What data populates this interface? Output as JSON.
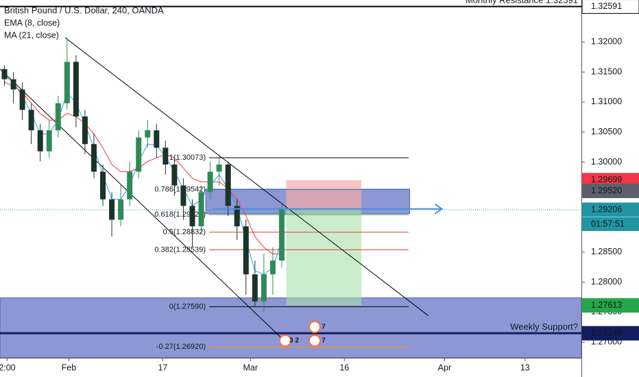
{
  "chart_data": {
    "type": "candlestick",
    "title": "British Pound / U.S. Dollar, 240, OANDA",
    "x": [
      0.5,
      1.5,
      2.5,
      3.5,
      4.5,
      5.5,
      6.5,
      7.5,
      8.5,
      9.5,
      10.5,
      11.5,
      12.5,
      13.5,
      14.5,
      15.5,
      16.5,
      17.5,
      18.5,
      19.5,
      20.5,
      21.5,
      22.5,
      23.5,
      24.5,
      25.5,
      26.5,
      27.5,
      28.5,
      29.5,
      30.5,
      31.5
    ],
    "open": [
      1.3155,
      1.3138,
      1.3121,
      1.3087,
      1.3053,
      1.3018,
      1.3053,
      1.3098,
      1.3167,
      1.3076,
      1.303,
      1.2984,
      1.2938,
      1.2904,
      1.2938,
      1.2984,
      1.3041,
      1.3053,
      1.3024,
      1.2996,
      1.2961,
      1.2927,
      1.2893,
      1.295,
      1.2984,
      1.2996,
      1.2927,
      1.2893,
      1.2813,
      1.2768,
      1.2813,
      1.2836
    ],
    "high": [
      1.3161,
      1.315,
      1.3133,
      1.3098,
      1.3064,
      1.307,
      1.311,
      1.3207,
      1.3178,
      1.3087,
      1.3047,
      1.2996,
      1.295,
      1.2961,
      1.3001,
      1.3053,
      1.307,
      1.3064,
      1.3036,
      1.3007,
      1.2973,
      1.2938,
      1.2961,
      1.3001,
      1.3013,
      1.3001,
      1.2938,
      1.2904,
      1.2836,
      1.2847,
      1.2858,
      1.2933
    ],
    "low": [
      1.3127,
      1.3098,
      1.307,
      1.303,
      1.3001,
      1.3007,
      1.3041,
      1.3087,
      1.3058,
      1.3013,
      1.2973,
      1.2927,
      1.2876,
      1.2893,
      1.2927,
      1.2973,
      1.3024,
      1.3007,
      1.2979,
      1.2944,
      1.2904,
      1.2858,
      1.2881,
      1.2938,
      1.2961,
      1.291,
      1.287,
      1.2779,
      1.2759,
      1.275,
      1.2779,
      1.2824
    ],
    "close": [
      1.3138,
      1.3121,
      1.3087,
      1.3053,
      1.3018,
      1.3053,
      1.3098,
      1.3167,
      1.3076,
      1.303,
      1.2984,
      1.2938,
      1.2904,
      1.2938,
      1.2984,
      1.3041,
      1.3053,
      1.3024,
      1.2996,
      1.2961,
      1.2927,
      1.2893,
      1.295,
      1.2984,
      1.2996,
      1.2927,
      1.2893,
      1.2813,
      1.2768,
      1.2813,
      1.2836,
      1.2921
    ],
    "up_color": "#2e8b57",
    "down_color": "#1c3328",
    "lines": [
      {
        "name": "EMA (8, close)",
        "color": "#2a9df4",
        "values": [
          1.3144,
          1.3133,
          1.311,
          1.3081,
          1.3047,
          1.3047,
          1.307,
          1.3116,
          1.3098,
          1.3064,
          1.3024,
          1.2979,
          1.2938,
          1.2938,
          1.2961,
          1.3001,
          1.303,
          1.3028,
          1.3009,
          1.2984,
          1.2956,
          1.2927,
          1.2938,
          1.2961,
          1.2979,
          1.2956,
          1.2927,
          1.287,
          1.2819,
          1.2813,
          1.2824,
          1.287
        ]
      },
      {
        "name": "MA (21, close)",
        "color": "#f23645",
        "values": [
          1.3133,
          1.3127,
          1.3116,
          1.3098,
          1.3081,
          1.307,
          1.307,
          1.3081,
          1.3076,
          1.3064,
          1.3047,
          1.3024,
          1.2996,
          1.2984,
          1.2984,
          1.299,
          1.3001,
          1.3007,
          1.3013,
          1.3007,
          1.299,
          1.2973,
          1.2967,
          1.2967,
          1.2967,
          1.2956,
          1.2938,
          1.291,
          1.2876,
          1.2858,
          1.2847,
          1.2847
        ]
      }
    ],
    "xlim": [
      0,
      65
    ],
    "xticks": [
      {
        "value": 0.8,
        "label": "2:00"
      },
      {
        "value": 7.7,
        "label": "Feb"
      },
      {
        "value": 18.2,
        "label": "17"
      },
      {
        "value": 28.0,
        "label": "Mar"
      },
      {
        "value": 38.5,
        "label": "16"
      },
      {
        "value": 49.7,
        "label": "Apr"
      },
      {
        "value": 58.7,
        "label": "13"
      }
    ],
    "ylim": [
      1.2674,
      1.327
    ],
    "yticks": [
      {
        "value": 1.27,
        "label": "1.27000"
      },
      {
        "value": 1.275,
        "label": "1.27500"
      },
      {
        "value": 1.28,
        "label": "1.28000"
      },
      {
        "value": 1.285,
        "label": "1.28500"
      },
      {
        "value": 1.29,
        "label": "1.29000"
      },
      {
        "value": 1.295,
        "label": "1.29500"
      },
      {
        "value": 1.3,
        "label": "1.30000"
      },
      {
        "value": 1.305,
        "label": "1.30500"
      },
      {
        "value": 1.31,
        "label": "1.31000"
      },
      {
        "value": 1.315,
        "label": "1.31500"
      },
      {
        "value": 1.32,
        "label": "1.32000"
      }
    ],
    "price_tags": [
      {
        "value": 1.32591,
        "label": "1.32591",
        "color": "#ffffff"
      },
      {
        "value": 1.29699,
        "label": "1.29699",
        "color": "#f23645"
      },
      {
        "value": 1.2952,
        "label": "1.29520",
        "color": "#5d606b"
      },
      {
        "value": 1.29206,
        "label": "1.29206",
        "color": "#2196a3",
        "line": true
      },
      {
        "value": 1.27613,
        "label": "1.27613",
        "color": "#26a64a"
      },
      {
        "value": 1.27149,
        "label": "1.27149",
        "color": "#131c5c"
      }
    ],
    "countdown": "01:57:51",
    "hlines": [
      {
        "value": 1.32591,
        "color": "#000000"
      },
      {
        "value": 1.27149,
        "color": "#131c5c"
      }
    ],
    "resistance_label": "Monthly Resistance 1.32591",
    "fib_levels": [
      {
        "value": 1.30073,
        "label": "1(1.30073)",
        "color": "#000000"
      },
      {
        "value": 1.29542,
        "label": "0.786(1.29542)",
        "color": "#2a7fd4"
      },
      {
        "value": 1.29124,
        "label": "0.618(1.29124)",
        "color": "#4caf50"
      },
      {
        "value": 1.28832,
        "label": "0.5(1.28832)",
        "color": "#e53935"
      },
      {
        "value": 1.28539,
        "label": "0.382(1.28539)",
        "color": "#e53935"
      },
      {
        "value": 1.2759,
        "label": "0(1.27590)",
        "color": "#000000"
      },
      {
        "value": 1.2692,
        "label": "-0.27(1.26920)",
        "color": "#ff9800"
      }
    ],
    "zones": [
      {
        "top": 1.2955,
        "bottom": 1.2914,
        "x0": 23.0,
        "x1": 45.8,
        "color": "#3f51b5"
      },
      {
        "top": 1.2774,
        "bottom": 1.2674,
        "x0": 0,
        "x1": 65,
        "color": "#3f51b5",
        "label": "Weekly Support?"
      }
    ],
    "position": {
      "entry": 1.29206,
      "stop": 1.29699,
      "target": 1.27613,
      "x0": 32.0,
      "x1": 40.4
    },
    "trendlines": [
      {
        "x": [
          0,
          31.4
        ],
        "y": [
          1.3155,
          1.2708
        ]
      },
      {
        "x": [
          7.3,
          47.9
        ],
        "y": [
          1.3207,
          1.2744
        ]
      }
    ],
    "arrow": {
      "y": 1.2922,
      "x0": 23.8,
      "x1": 49.4,
      "color": "#4a90d9"
    },
    "events": [
      "7",
      "3 2",
      "7"
    ]
  }
}
